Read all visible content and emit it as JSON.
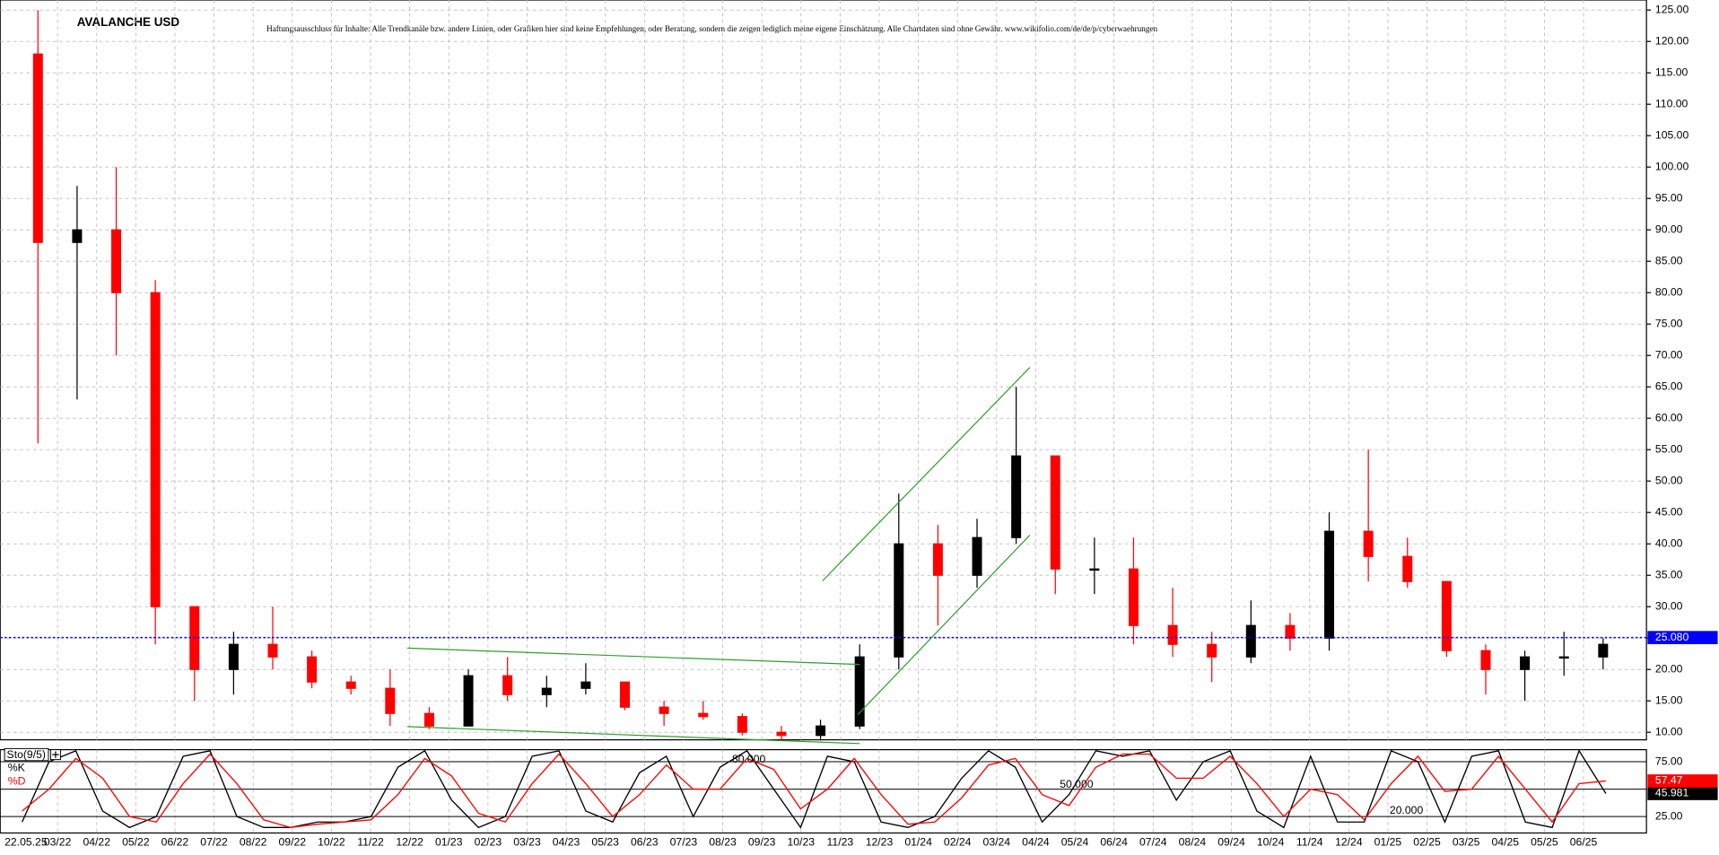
{
  "chart_data": [
    {
      "type": "candlestick",
      "title": "AVALANCHE USD",
      "subtitle": "Haftungsausschluss für Inhalte: Alle Trendkanäle bzw. andere Linien, oder Grafiken hier sind keine Empfehlungen, oder Beratung, sondern die zeigen lediglich meine eigene Einschätzung. Alle Chartdaten sind ohne Gewähr. www.wikifolio.com/de/de/p/cyberwaehrungen",
      "categories": [
        "22.05.25",
        "03/22",
        "04/22",
        "05/22",
        "06/22",
        "07/22",
        "08/22",
        "09/22",
        "10/22",
        "11/22",
        "12/22",
        "01/23",
        "02/23",
        "03/23",
        "04/23",
        "05/23",
        "06/23",
        "07/23",
        "08/23",
        "09/23",
        "10/23",
        "11/23",
        "12/23",
        "01/24",
        "02/24",
        "03/24",
        "04/24",
        "05/24",
        "06/24",
        "07/24",
        "08/24",
        "09/24",
        "10/24",
        "11/24",
        "12/24",
        "01/25",
        "02/25",
        "03/25",
        "04/25",
        "05/25",
        "06/25"
      ],
      "open": [
        118,
        88,
        90,
        80,
        30,
        20,
        24,
        22,
        18,
        17,
        13,
        11,
        19,
        16,
        17,
        18,
        14,
        13,
        12.5,
        10,
        9.5,
        11,
        22,
        40,
        35,
        41,
        54,
        36,
        36,
        27,
        24,
        22,
        27,
        25,
        42,
        38,
        34,
        23,
        20,
        22,
        22
      ],
      "high": [
        125,
        97,
        100,
        82,
        30,
        26,
        30,
        23,
        19,
        20,
        14,
        20,
        22,
        19,
        21,
        18,
        15,
        15,
        13,
        11,
        12,
        24,
        48,
        43,
        44,
        65,
        54,
        41,
        41,
        33,
        26,
        31,
        29,
        45,
        55,
        41,
        34,
        24,
        23,
        26,
        25
      ],
      "low": [
        56,
        63,
        70,
        24,
        15,
        16,
        20,
        17,
        16,
        11,
        10.5,
        11,
        15,
        14,
        16,
        13.5,
        11,
        12,
        9.5,
        8.8,
        8.7,
        10.5,
        20,
        27,
        33,
        40,
        32,
        32,
        24,
        22,
        18,
        21,
        23,
        23,
        34,
        33,
        22,
        16,
        15,
        19,
        20
      ],
      "close": [
        88,
        90,
        80,
        30,
        20,
        24,
        22,
        18,
        17,
        13,
        11,
        19,
        16,
        17,
        18,
        14,
        13,
        12.5,
        10,
        9.5,
        11,
        22,
        40,
        35,
        41,
        54,
        36,
        36,
        27,
        24,
        22,
        27,
        25,
        42,
        38,
        34,
        23,
        20,
        22,
        22,
        24
      ],
      "up_color": "#000000",
      "down_color": "#ff0000",
      "ylim": [
        8.8,
        126.6
      ],
      "yticks": [
        {
          "value": 10,
          "label": "10.00"
        },
        {
          "value": 15,
          "label": "15.00"
        },
        {
          "value": 20,
          "label": "20.00"
        },
        {
          "value": 25,
          "label": "25.00"
        },
        {
          "value": 30,
          "label": "30.00"
        },
        {
          "value": 35,
          "label": "35.00"
        },
        {
          "value": 40,
          "label": "40.00"
        },
        {
          "value": 45,
          "label": "45.00"
        },
        {
          "value": 50,
          "label": "50.00"
        },
        {
          "value": 55,
          "label": "55.00"
        },
        {
          "value": 60,
          "label": "60.00"
        },
        {
          "value": 65,
          "label": "65.00"
        },
        {
          "value": 70,
          "label": "70.00"
        },
        {
          "value": 75,
          "label": "75.00"
        },
        {
          "value": 80,
          "label": "80.00"
        },
        {
          "value": 85,
          "label": "85.00"
        },
        {
          "value": 90,
          "label": "90.00"
        },
        {
          "value": 95,
          "label": "95.00"
        },
        {
          "value": 100,
          "label": "100.00"
        },
        {
          "value": 105,
          "label": "105.00"
        },
        {
          "value": 110,
          "label": "110.00"
        },
        {
          "value": 115,
          "label": "115.00"
        },
        {
          "value": 120,
          "label": "120.00"
        },
        {
          "value": 125,
          "label": "125.00"
        }
      ],
      "grid": true,
      "hline": {
        "value": 25.08,
        "label": "25.080",
        "color": "#0000ff"
      },
      "trendlines": [
        {
          "color": "#2e9e2e",
          "x": [
            20.55,
            25.85
          ],
          "y": [
            34.1,
            68.1
          ]
        },
        {
          "color": "#2e9e2e",
          "x": [
            21.45,
            25.85
          ],
          "y": [
            12.8,
            41.4
          ]
        },
        {
          "color": "#2e9e2e",
          "x": [
            9.94,
            21.5
          ],
          "y": [
            23.4,
            20.8
          ]
        },
        {
          "color": "#2e9e2e",
          "x": [
            9.94,
            21.5
          ],
          "y": [
            10.9,
            8.2
          ]
        }
      ]
    },
    {
      "type": "line",
      "title": "Sto(9/5)",
      "series": [
        {
          "name": "%K",
          "color": "#000000",
          "values": [
            20,
            75,
            85,
            30,
            15,
            25,
            80,
            85,
            25,
            15,
            15,
            20,
            20,
            25,
            70,
            85,
            40,
            15,
            25,
            80,
            85,
            30,
            20,
            65,
            80,
            25,
            70,
            85,
            50,
            15,
            80,
            75,
            20,
            15,
            25,
            60,
            85,
            70,
            20,
            45,
            85,
            80,
            85,
            40,
            75,
            85,
            30,
            15,
            80,
            20,
            20,
            85,
            75,
            20,
            80,
            85,
            20,
            15,
            85,
            45.981
          ]
        },
        {
          "name": "%D",
          "color": "#ff0000",
          "values": [
            30,
            50,
            78,
            60,
            25,
            20,
            55,
            82,
            55,
            22,
            15,
            18,
            20,
            22,
            45,
            78,
            62,
            28,
            20,
            55,
            82,
            55,
            25,
            45,
            72,
            50,
            50,
            78,
            68,
            32,
            50,
            78,
            45,
            18,
            20,
            42,
            72,
            78,
            45,
            35,
            70,
            82,
            82,
            60,
            60,
            80,
            55,
            25,
            50,
            45,
            22,
            55,
            80,
            48,
            50,
            80,
            50,
            20,
            55,
            57.47
          ]
        }
      ],
      "ylim": [
        10,
        86
      ],
      "yticks": [
        {
          "value": 25,
          "label": "25.00"
        },
        {
          "value": 50,
          "label": "50.00"
        },
        {
          "value": 75,
          "label": "75.00"
        }
      ],
      "annotations": [
        "80.000",
        "50.000",
        "20.000"
      ]
    }
  ]
}
